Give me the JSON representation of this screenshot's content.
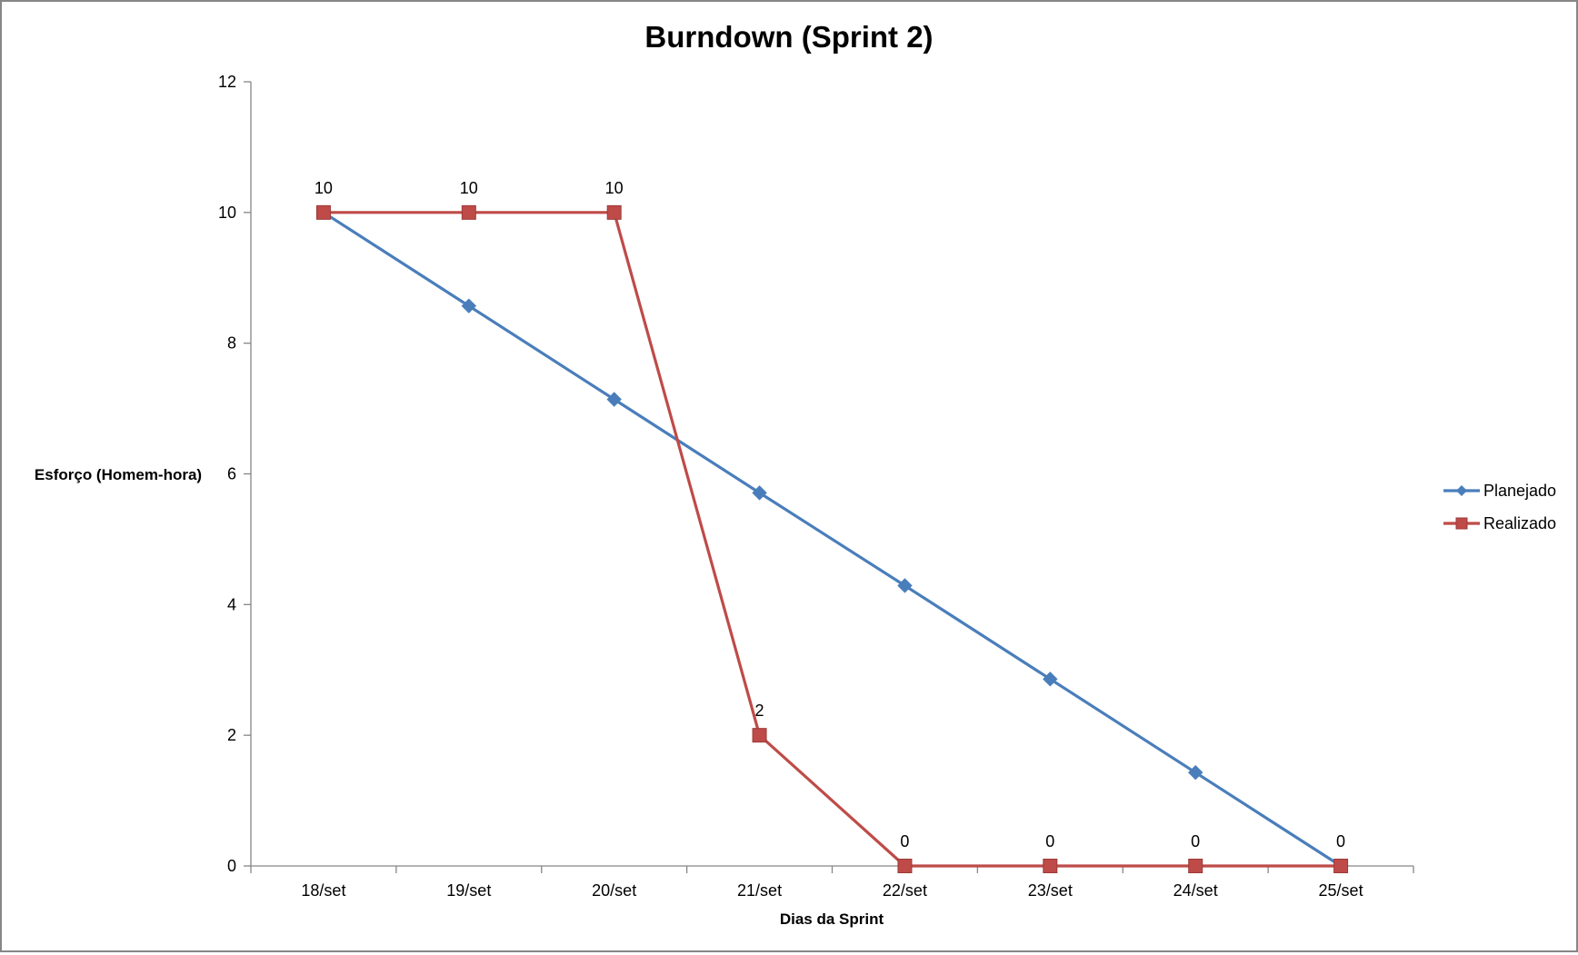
{
  "chart_data": {
    "type": "line",
    "title": "Burndown (Sprint 2)",
    "xlabel": "Dias da Sprint",
    "ylabel": "Esforço (Homem-hora)",
    "categories": [
      "18/set",
      "19/set",
      "20/set",
      "21/set",
      "22/set",
      "23/set",
      "24/set",
      "25/set"
    ],
    "ylim": [
      0,
      12
    ],
    "yticks": [
      0,
      2,
      4,
      6,
      8,
      10,
      12
    ],
    "grid": false,
    "legend_position": "right",
    "series": [
      {
        "name": "Planejado",
        "color": "#4a7ebb",
        "marker": "diamond",
        "values": [
          10,
          8.57,
          7.14,
          5.71,
          4.29,
          2.86,
          1.43,
          0
        ],
        "labels": [
          null,
          null,
          null,
          null,
          null,
          null,
          null,
          null
        ]
      },
      {
        "name": "Realizado",
        "color": "#be4b48",
        "marker": "square",
        "values": [
          10,
          10,
          10,
          2,
          0,
          0,
          0,
          0
        ],
        "labels": [
          "10",
          "10",
          "10",
          "2",
          "0",
          "0",
          "0",
          "0"
        ]
      }
    ]
  }
}
